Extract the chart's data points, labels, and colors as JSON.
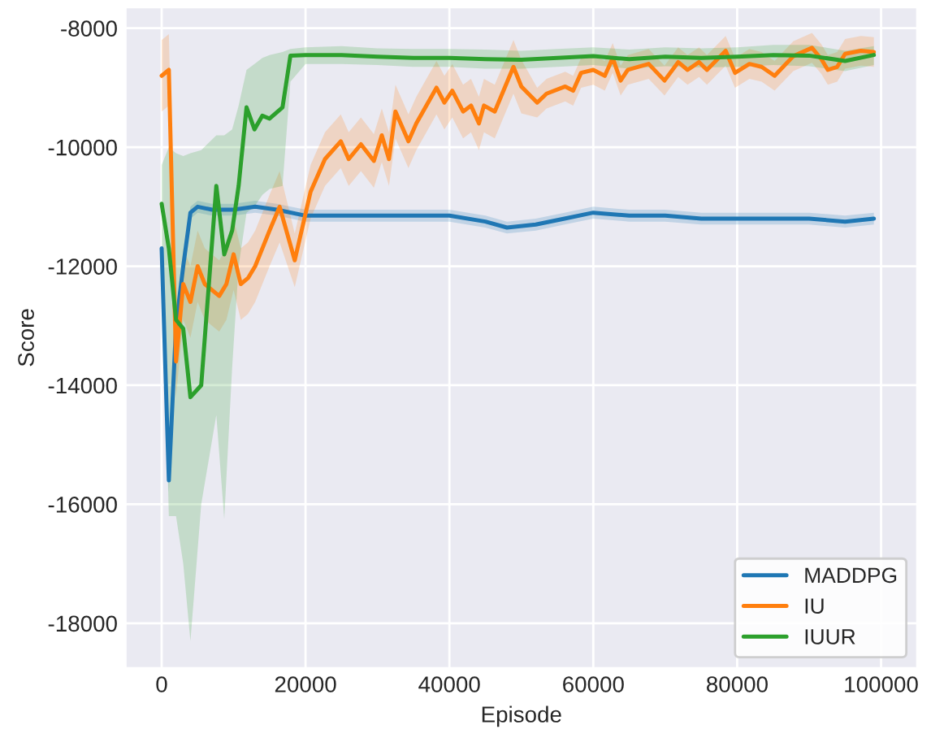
{
  "chart_data": {
    "type": "line",
    "xlabel": "Episode",
    "ylabel": "Score",
    "xlim": [
      -5000,
      105000
    ],
    "xticks": [
      0,
      20000,
      40000,
      60000,
      80000,
      100000
    ],
    "ylim": [
      -18750,
      -7650
    ],
    "yticks": [
      -18000,
      -16000,
      -14000,
      -12000,
      -10000,
      -8000
    ],
    "grid": true,
    "legend": "bottom right",
    "line_style": "solid",
    "series": [
      {
        "name": "MADDPG",
        "color": "#1f77b4",
        "x": [
          0,
          1000,
          2000,
          3000,
          4000,
          5000,
          7000,
          10000,
          13000,
          16000,
          20000,
          25000,
          30000,
          35000,
          40000,
          45000,
          48000,
          52000,
          56000,
          60000,
          65000,
          70000,
          75000,
          80000,
          85000,
          90000,
          95000,
          99000
        ],
        "values": [
          -11700,
          -15600,
          -13000,
          -12000,
          -11100,
          -11000,
          -11050,
          -11050,
          -11000,
          -11050,
          -11150,
          -11150,
          -11150,
          -11150,
          -11150,
          -11250,
          -11350,
          -11300,
          -11200,
          -11100,
          -11150,
          -11150,
          -11200,
          -11200,
          -11200,
          -11200,
          -11250,
          -11200
        ],
        "lower": [
          -11800,
          -15800,
          -13200,
          -12150,
          -11200,
          -11100,
          -11150,
          -11150,
          -11100,
          -11150,
          -11250,
          -11250,
          -11250,
          -11250,
          -11250,
          -11350,
          -11450,
          -11400,
          -11300,
          -11200,
          -11250,
          -11250,
          -11300,
          -11300,
          -11300,
          -11300,
          -11350,
          -11300
        ],
        "upper": [
          -11600,
          -15400,
          -12800,
          -11850,
          -11000,
          -10900,
          -10950,
          -10950,
          -10900,
          -10950,
          -11050,
          -11050,
          -11050,
          -11050,
          -11050,
          -11150,
          -11250,
          -11200,
          -11100,
          -11000,
          -11050,
          -11050,
          -11100,
          -11100,
          -11100,
          -11100,
          -11150,
          -11100
        ]
      },
      {
        "name": "IU",
        "color": "#ff7f0e",
        "x": [
          0,
          1000,
          2000,
          3000,
          4000,
          5000,
          6000,
          7000,
          8000,
          9000,
          10000,
          11000,
          12000,
          13000,
          14000,
          15000,
          16400,
          18500,
          20700,
          22700,
          24900,
          26000,
          27700,
          29500,
          30600,
          31600,
          32500,
          34300,
          35400,
          38200,
          39300,
          40400,
          41900,
          43000,
          44100,
          44800,
          46300,
          48900,
          50000,
          52200,
          53500,
          56100,
          57200,
          58300,
          60000,
          61600,
          62700,
          63800,
          64800,
          67700,
          69900,
          71800,
          73100,
          74700,
          75800,
          78400,
          79700,
          81700,
          83400,
          85200,
          87800,
          90400,
          91700,
          92600,
          93900,
          95000,
          97200,
          99000
        ],
        "values": [
          -8800,
          -8700,
          -13600,
          -12300,
          -12600,
          -12000,
          -12300,
          -12400,
          -12500,
          -12300,
          -11800,
          -12300,
          -12200,
          -12000,
          -11700,
          -11400,
          -11000,
          -11900,
          -10750,
          -10200,
          -9900,
          -10200,
          -9950,
          -10230,
          -9800,
          -10200,
          -9400,
          -9900,
          -9600,
          -9000,
          -9250,
          -9050,
          -9400,
          -9300,
          -9600,
          -9300,
          -9400,
          -8650,
          -8980,
          -9250,
          -9100,
          -8980,
          -9050,
          -8750,
          -8700,
          -8800,
          -8500,
          -8880,
          -8700,
          -8600,
          -8880,
          -8570,
          -8700,
          -8570,
          -8700,
          -8380,
          -8750,
          -8600,
          -8650,
          -8800,
          -8470,
          -8330,
          -8520,
          -8700,
          -8650,
          -8430,
          -8380,
          -8400
        ],
        "lower": [
          -9400,
          -9300,
          -14200,
          -12900,
          -13200,
          -12600,
          -12900,
          -13000,
          -13100,
          -12900,
          -12400,
          -12900,
          -12800,
          -12600,
          -12300,
          -12000,
          -11600,
          -12350,
          -11200,
          -10650,
          -10350,
          -10650,
          -10400,
          -10680,
          -10250,
          -10650,
          -9850,
          -10350,
          -10050,
          -9450,
          -9700,
          -9500,
          -9850,
          -9750,
          -10050,
          -9750,
          -9850,
          -9100,
          -9430,
          -9500,
          -9350,
          -9230,
          -9300,
          -9000,
          -8950,
          -9050,
          -8750,
          -9130,
          -8950,
          -8850,
          -9130,
          -8820,
          -8950,
          -8820,
          -8950,
          -8630,
          -9000,
          -8850,
          -8900,
          -9050,
          -8720,
          -8580,
          -8770,
          -8950,
          -8900,
          -8680,
          -8630,
          -8650
        ],
        "upper": [
          -8200,
          -8100,
          -13000,
          -11700,
          -12000,
          -11400,
          -11700,
          -11800,
          -11900,
          -11700,
          -11200,
          -11700,
          -11600,
          -11400,
          -11100,
          -10800,
          -10400,
          -11450,
          -10300,
          -9750,
          -9450,
          -9750,
          -9500,
          -9780,
          -9350,
          -9750,
          -8950,
          -9450,
          -9150,
          -8550,
          -8800,
          -8600,
          -8950,
          -8850,
          -9150,
          -8850,
          -8950,
          -8200,
          -8530,
          -9000,
          -8850,
          -8730,
          -8800,
          -8500,
          -8450,
          -8550,
          -8250,
          -8630,
          -8450,
          -8350,
          -8630,
          -8320,
          -8450,
          -8320,
          -8450,
          -8130,
          -8500,
          -8350,
          -8400,
          -8550,
          -8220,
          -8080,
          -8270,
          -8450,
          -8400,
          -8180,
          -8130,
          -8150
        ]
      },
      {
        "name": "IUUR",
        "color": "#2ca02c",
        "x": [
          0,
          1000,
          2000,
          3000,
          4000,
          5500,
          7600,
          8700,
          9800,
          10700,
          11800,
          12900,
          14000,
          15000,
          16800,
          17900,
          20000,
          25000,
          30000,
          35000,
          40000,
          45000,
          50000,
          55000,
          60000,
          65000,
          70000,
          75000,
          80000,
          85000,
          90000,
          95000,
          99000
        ],
        "values": [
          -10950,
          -11700,
          -12900,
          -13050,
          -14200,
          -14000,
          -10650,
          -11800,
          -11400,
          -10650,
          -9330,
          -9700,
          -9470,
          -9520,
          -9330,
          -8460,
          -8450,
          -8450,
          -8480,
          -8500,
          -8500,
          -8520,
          -8530,
          -8500,
          -8470,
          -8520,
          -8480,
          -8500,
          -8480,
          -8450,
          -8460,
          -8550,
          -8450
        ],
        "lower": [
          -11600,
          -16200,
          -16200,
          -17000,
          -18300,
          -16000,
          -14500,
          -16250,
          -13700,
          -12000,
          -11100,
          -11000,
          -10800,
          -10700,
          -10650,
          -8900,
          -8600,
          -8600,
          -8620,
          -8650,
          -8650,
          -8680,
          -8680,
          -8650,
          -8620,
          -8680,
          -8640,
          -8660,
          -8650,
          -8620,
          -8640,
          -8720,
          -8620
        ],
        "upper": [
          -10300,
          -10000,
          -10100,
          -10150,
          -10100,
          -10050,
          -9800,
          -9800,
          -9700,
          -9300,
          -8700,
          -8600,
          -8500,
          -8450,
          -8400,
          -8350,
          -8320,
          -8300,
          -8340,
          -8350,
          -8350,
          -8360,
          -8380,
          -8350,
          -8320,
          -8360,
          -8320,
          -8340,
          -8320,
          -8280,
          -8280,
          -8380,
          -8300
        ]
      }
    ]
  }
}
